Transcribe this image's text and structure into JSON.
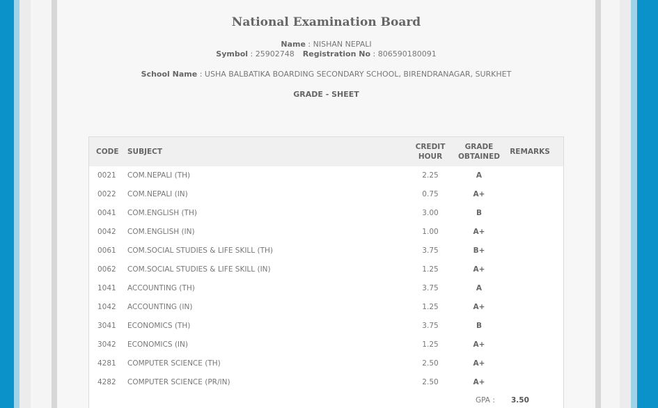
{
  "header": {
    "title": "National Examination Board",
    "name_label": "Name",
    "name_value": "NISHAN NEPALI",
    "symbol_label": "Symbol",
    "symbol_value": "25902748",
    "registration_label": "Registration No",
    "registration_value": "806590180091",
    "school_label": "School Name",
    "school_value": "USHA BALBATIKA BOARDING SECONDARY SCHOOL, BIRENDRANAGAR, SURKHET",
    "sheet_title": "GRADE - SHEET"
  },
  "table": {
    "columns": {
      "code": "CODE",
      "subject": "SUBJECT",
      "credit_line1": "CREDIT",
      "credit_line2": "HOUR",
      "grade_line1": "GRADE",
      "grade_line2": "OBTAINED",
      "remarks": "REMARKS"
    },
    "rows": [
      {
        "code": "0021",
        "subject": "COM.NEPALI (TH)",
        "credit": "2.25",
        "grade": "A"
      },
      {
        "code": "0022",
        "subject": "COM.NEPALI (IN)",
        "credit": "0.75",
        "grade": "A+"
      },
      {
        "code": "0041",
        "subject": "COM.ENGLISH (TH)",
        "credit": "3.00",
        "grade": "B"
      },
      {
        "code": "0042",
        "subject": "COM.ENGLISH (IN)",
        "credit": "1.00",
        "grade": "A+"
      },
      {
        "code": "0061",
        "subject": "COM.SOCIAL STUDIES & LIFE SKILL (TH)",
        "credit": "3.75",
        "grade": "B+"
      },
      {
        "code": "0062",
        "subject": "COM.SOCIAL STUDIES & LIFE SKILL (IN)",
        "credit": "1.25",
        "grade": "A+"
      },
      {
        "code": "1041",
        "subject": "ACCOUNTING (TH)",
        "credit": "3.75",
        "grade": "A"
      },
      {
        "code": "1042",
        "subject": "ACCOUNTING (IN)",
        "credit": "1.25",
        "grade": "A+"
      },
      {
        "code": "3041",
        "subject": "ECONOMICS (TH)",
        "credit": "3.75",
        "grade": "B"
      },
      {
        "code": "3042",
        "subject": "ECONOMICS (IN)",
        "credit": "1.25",
        "grade": "A+"
      },
      {
        "code": "4281",
        "subject": "COMPUTER SCIENCE (TH)",
        "credit": "2.50",
        "grade": "A+"
      },
      {
        "code": "4282",
        "subject": "COMPUTER SCIENCE (PR/IN)",
        "credit": "2.50",
        "grade": "A+"
      }
    ],
    "gpa_label": "GPA :",
    "gpa_value": "3.50"
  }
}
